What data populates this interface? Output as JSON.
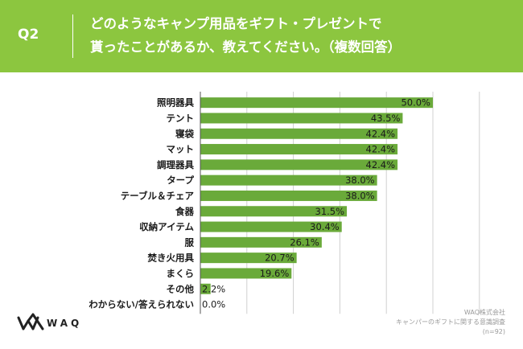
{
  "header": {
    "qnum": "Q2",
    "question_line1": "どのようなキャンプ用品をギフト・プレゼントで",
    "question_line2": "貰ったことがあるか、教えてください。（複数回答）"
  },
  "colors": {
    "header_bg": "#8cc63f",
    "bar": "#6aaa3a",
    "grid": "#d0d0d0"
  },
  "chart_data": {
    "type": "bar",
    "orientation": "horizontal",
    "categories": [
      "照明器具",
      "テント",
      "寝袋",
      "マット",
      "調理器具",
      "タープ",
      "テーブル＆チェア",
      "食器",
      "収納アイテム",
      "服",
      "焚き火用具",
      "まくら",
      "その他",
      "わからない/答えられない"
    ],
    "values": [
      50.0,
      43.5,
      42.4,
      42.4,
      42.4,
      38.0,
      38.0,
      31.5,
      30.4,
      26.1,
      20.7,
      19.6,
      2.2,
      0.0
    ],
    "value_labels": [
      "50.0%",
      "43.5%",
      "42.4%",
      "42.4%",
      "42.4%",
      "38.0%",
      "38.0%",
      "31.5%",
      "30.4%",
      "26.1%",
      "20.7%",
      "19.6%",
      "2.2%",
      "0.0%"
    ],
    "xlim": [
      0,
      60
    ],
    "grid": true
  },
  "footer": {
    "logo_text": "WAQ",
    "source_line1": "WAQ株式会社",
    "source_line2": "キャンパーのギフトに関する意識調査",
    "source_line3": "(n=92)"
  }
}
